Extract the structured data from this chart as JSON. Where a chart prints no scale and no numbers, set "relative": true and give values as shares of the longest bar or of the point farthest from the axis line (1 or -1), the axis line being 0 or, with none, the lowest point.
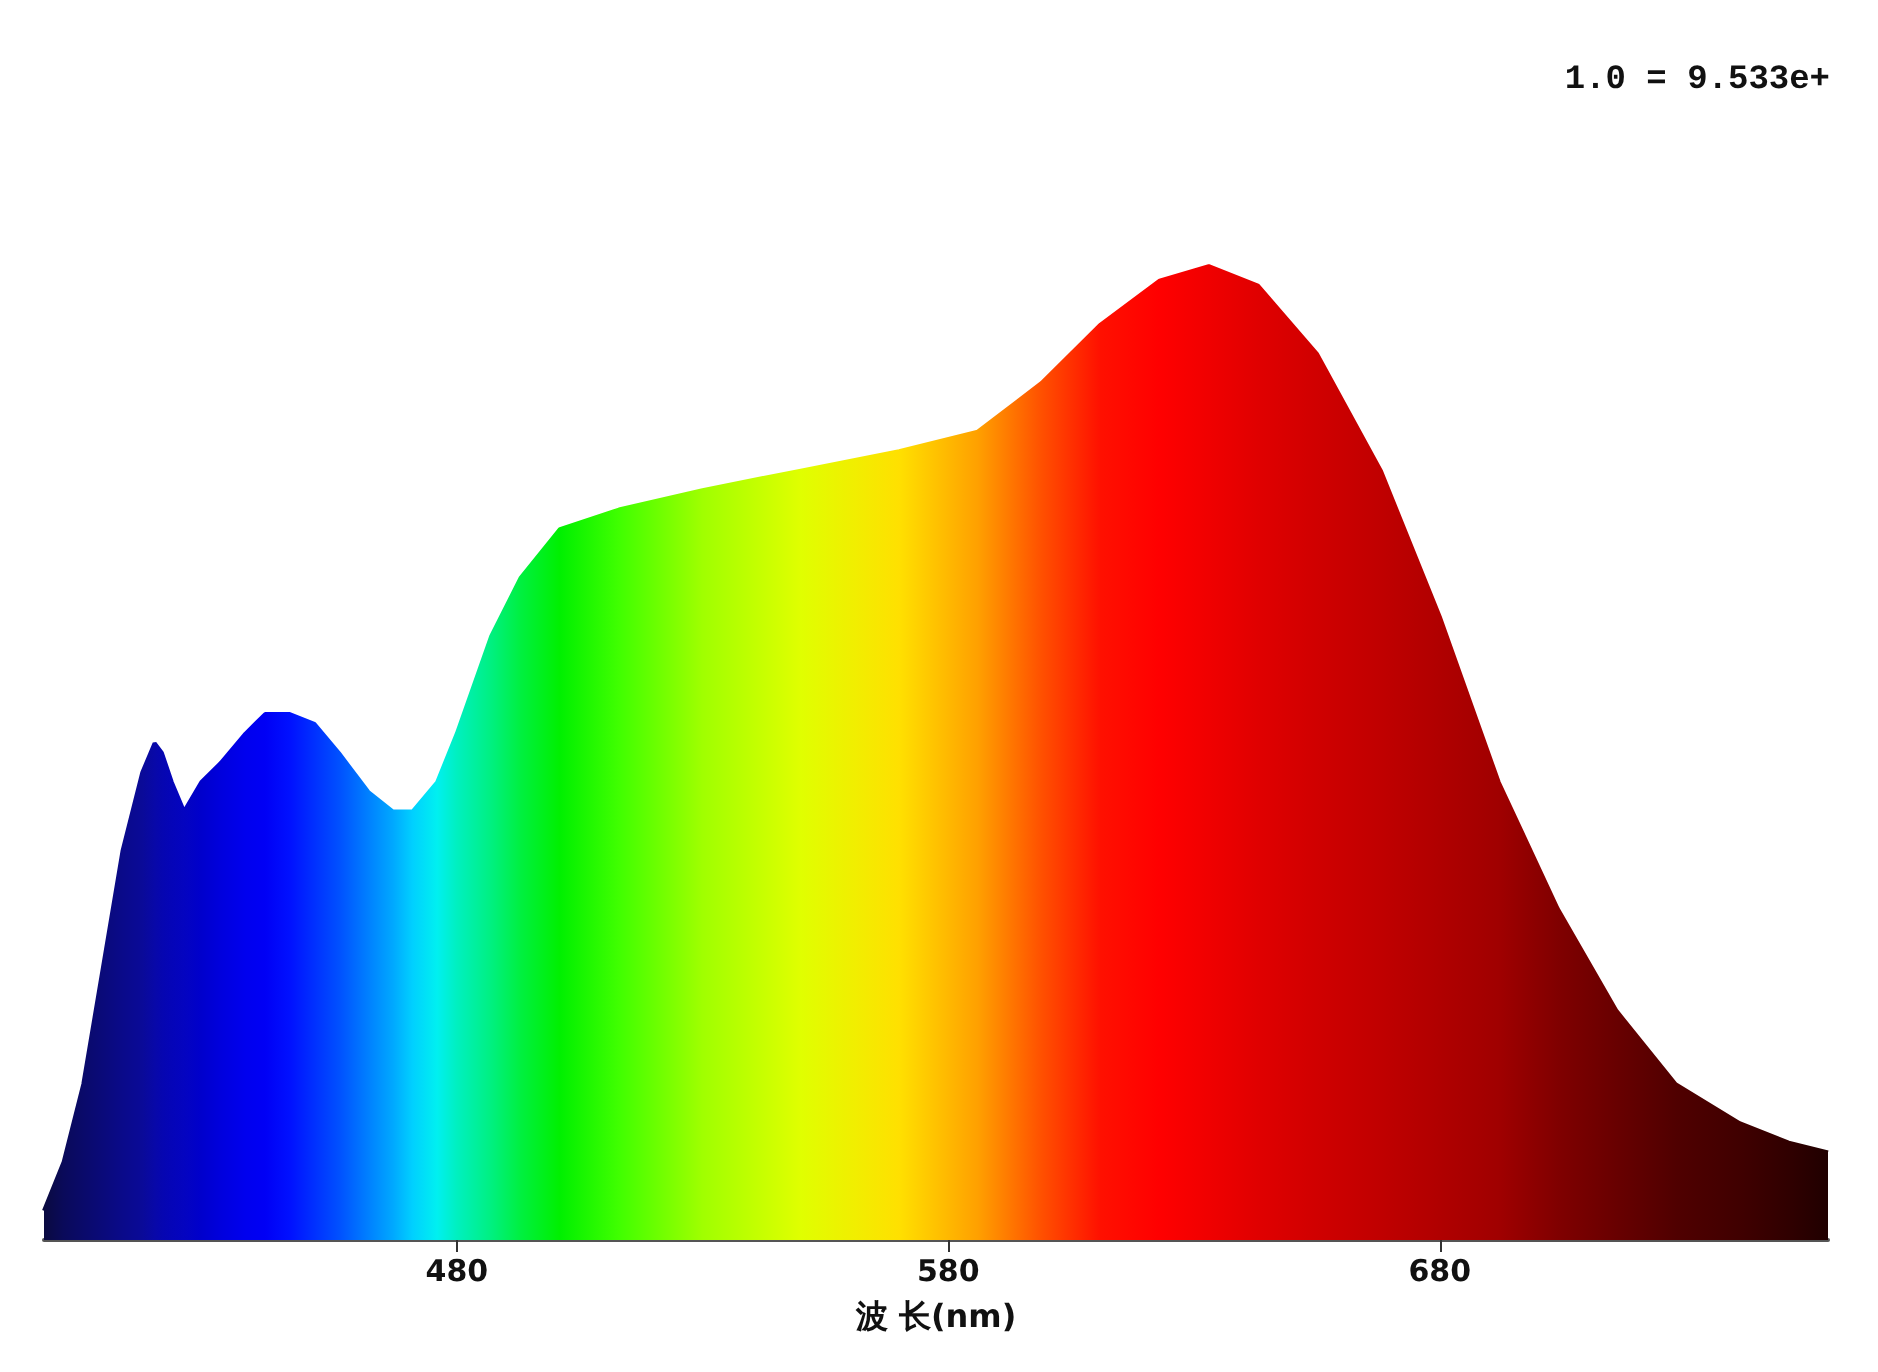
{
  "chart_data": {
    "type": "area",
    "relative": true,
    "xlabel": "波 长(nm)",
    "annotations": [
      "1.0 = 9.533e+"
    ],
    "xlim": [
      396,
      759
    ],
    "xticks": [
      480,
      580,
      680
    ],
    "marker": "none",
    "x": [
      396,
      400,
      404,
      408,
      412,
      416,
      418.5,
      420,
      422,
      424.5,
      428,
      432,
      437,
      441,
      446,
      451,
      456,
      462,
      467,
      471,
      476,
      480,
      487,
      493,
      501,
      513,
      530,
      550,
      570,
      586,
      599,
      611,
      623,
      633,
      643,
      655,
      668,
      680,
      692,
      704,
      716,
      728,
      741,
      751,
      759
    ],
    "series": [
      {
        "values": [
          0.03,
          0.08,
          0.16,
          0.28,
          0.4,
          0.48,
          0.51,
          0.5,
          0.47,
          0.44,
          0.47,
          0.49,
          0.52,
          0.54,
          0.54,
          0.53,
          0.5,
          0.46,
          0.44,
          0.44,
          0.47,
          0.52,
          0.62,
          0.68,
          0.73,
          0.75,
          0.77,
          0.79,
          0.81,
          0.83,
          0.88,
          0.94,
          0.985,
          1,
          0.98,
          0.91,
          0.79,
          0.64,
          0.47,
          0.34,
          0.235,
          0.16,
          0.12,
          0.1,
          0.09
        ],
        "colors": [
          "#0a0a40",
          "#0a0a5a",
          "#0a0a6a",
          "#0a0a7a",
          "#0a0a8a",
          "#0a0a98",
          "#0808a8",
          "#0606b0",
          "#0505b8",
          "#0404c0",
          "#0000cc",
          "#0000dd",
          "#0000ee",
          "#0000f5",
          "#0010ff",
          "#0030ff",
          "#0050ff",
          "#0080ff",
          "#00a8ff",
          "#00d0ff",
          "#00f0f0",
          "#00f0c0",
          "#00f080",
          "#00f040",
          "#00f000",
          "#40ff00",
          "#a0ff00",
          "#e0ff00",
          "#ffe000",
          "#ffa000",
          "#ff5000",
          "#ff1000",
          "#ff0000",
          "#f00000",
          "#e00000",
          "#d00000",
          "#c00000",
          "#b00000",
          "#a00000",
          "#800000",
          "#680000",
          "#500000",
          "#400000",
          "#300000",
          "#200000"
        ]
      }
    ]
  }
}
